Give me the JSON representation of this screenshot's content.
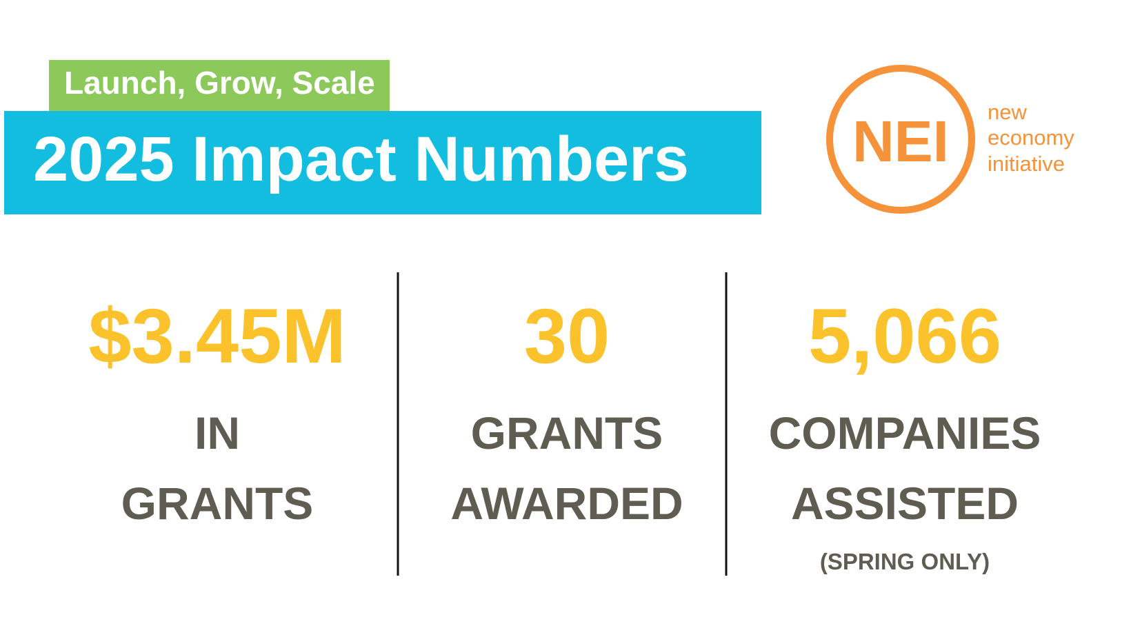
{
  "header": {
    "tagline": "Launch, Grow, Scale",
    "title": "2025 Impact Numbers"
  },
  "logo": {
    "abbr": "NEI",
    "name": [
      "new",
      "economy",
      "initiative"
    ]
  },
  "stats": [
    {
      "value": "$3.45M",
      "label": [
        "IN",
        "GRANTS"
      ]
    },
    {
      "value": "30",
      "label": [
        "GRANTS",
        "AWARDED"
      ]
    },
    {
      "value": "5,066",
      "label": [
        "COMPANIES",
        "ASSISTED"
      ],
      "note": "(SPRING ONLY)"
    }
  ]
}
